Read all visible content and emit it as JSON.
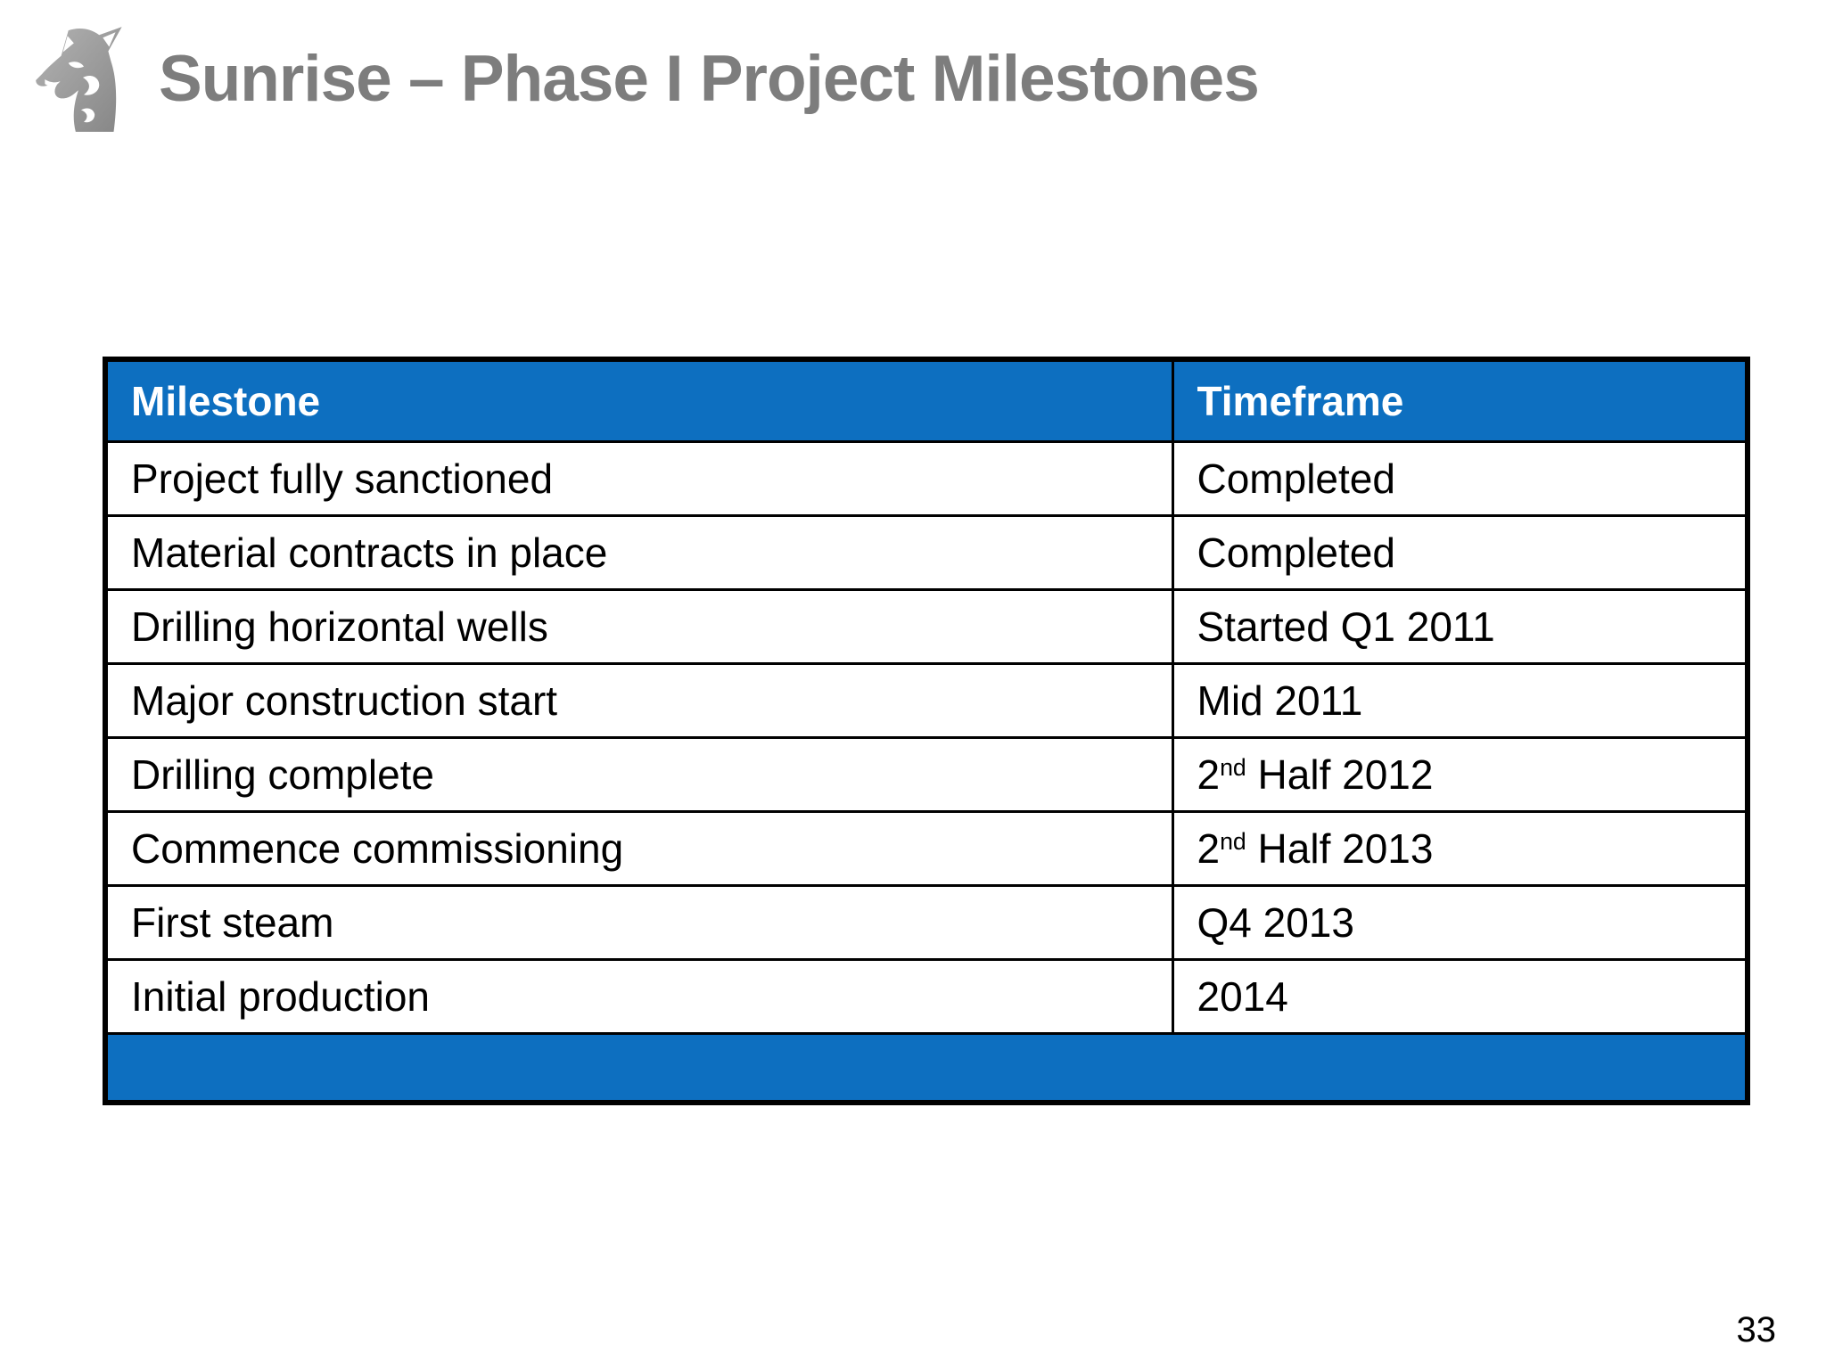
{
  "slide": {
    "title": "Sunrise – Phase I Project Milestones",
    "page_number": "33"
  },
  "colors": {
    "accent_blue": "#0d6fc0",
    "title_gray": "#7d7d7d",
    "border_black": "#000000",
    "header_text": "#ffffff"
  },
  "logo": {
    "icon": "husky-dog-head-icon"
  },
  "table": {
    "columns": [
      "Milestone",
      "Timeframe"
    ],
    "rows": [
      {
        "milestone": "Project fully sanctioned",
        "timeframe": [
          {
            "t": "Completed"
          }
        ]
      },
      {
        "milestone": "Material contracts in place",
        "timeframe": [
          {
            "t": "Completed"
          }
        ]
      },
      {
        "milestone": "Drilling horizontal wells",
        "timeframe": [
          {
            "t": "Started Q1 2011"
          }
        ]
      },
      {
        "milestone": "Major construction start",
        "timeframe": [
          {
            "t": "Mid 2011"
          }
        ]
      },
      {
        "milestone": "Drilling complete",
        "timeframe": [
          {
            "t": "2"
          },
          {
            "t": "nd",
            "sup": true
          },
          {
            "t": " Half 2012"
          }
        ]
      },
      {
        "milestone": "Commence commissioning",
        "timeframe": [
          {
            "t": "2"
          },
          {
            "t": "nd",
            "sup": true
          },
          {
            "t": " Half 2013"
          }
        ]
      },
      {
        "milestone": "First steam",
        "timeframe": [
          {
            "t": "Q4 2013"
          }
        ]
      },
      {
        "milestone": "Initial production",
        "timeframe": [
          {
            "t": "2014"
          }
        ]
      }
    ]
  }
}
